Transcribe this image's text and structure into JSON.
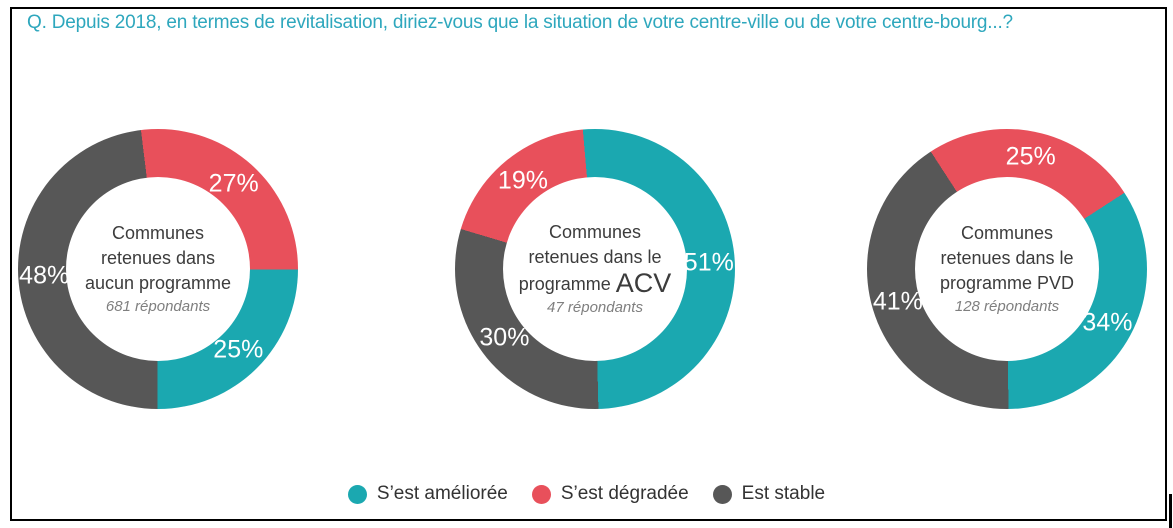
{
  "title": "Q. Depuis 2018, en termes de revitalisation, diriez-vous que la situation de votre centre-ville ou de votre centre-bourg...?",
  "colors": {
    "ameliore": "#1BA8B0",
    "degrade": "#E8505B",
    "stable": "#575757",
    "title_text": "#2EA7BD",
    "center_text": "#3C3C3C",
    "respondents_text": "#7F7F7F",
    "percent_label_text": "#FFFFFF",
    "frame_border": "#000000"
  },
  "legend": [
    {
      "key": "ameliore",
      "label": "S’est améliorée"
    },
    {
      "key": "degrade",
      "label": "S’est dégradée"
    },
    {
      "key": "stable",
      "label": "Est stable"
    }
  ],
  "chart_data": [
    {
      "type": "pie",
      "subtype": "donut",
      "center_label_lines": [
        "Communes",
        "retenues dans",
        "aucun programme"
      ],
      "program_code": "",
      "respondents": "681 répondants",
      "rotation_deg": -7,
      "slices": [
        {
          "key": "degrade",
          "label": "S’est dégradée",
          "value": 27
        },
        {
          "key": "ameliore",
          "label": "S’est améliorée",
          "value": 25
        },
        {
          "key": "stable",
          "label": "Est stable",
          "value": 48
        }
      ]
    },
    {
      "type": "pie",
      "subtype": "donut",
      "center_label_lines": [
        "Communes",
        "retenues dans le",
        "programme"
      ],
      "program_code": "ACV",
      "respondents": "47 répondants",
      "rotation_deg": -5,
      "slices": [
        {
          "key": "ameliore",
          "label": "S’est améliorée",
          "value": 51
        },
        {
          "key": "stable",
          "label": "Est stable",
          "value": 30
        },
        {
          "key": "degrade",
          "label": "S’est dégradée",
          "value": 19
        }
      ]
    },
    {
      "type": "pie",
      "subtype": "donut",
      "center_label_lines": [
        "Communes",
        "retenues dans le",
        "programme PVD"
      ],
      "program_code": "",
      "respondents": "128 répondants",
      "rotation_deg": -33,
      "slices": [
        {
          "key": "degrade",
          "label": "S’est dégradée",
          "value": 25
        },
        {
          "key": "ameliore",
          "label": "S’est améliorée",
          "value": 34
        },
        {
          "key": "stable",
          "label": "Est stable",
          "value": 41
        }
      ]
    }
  ]
}
